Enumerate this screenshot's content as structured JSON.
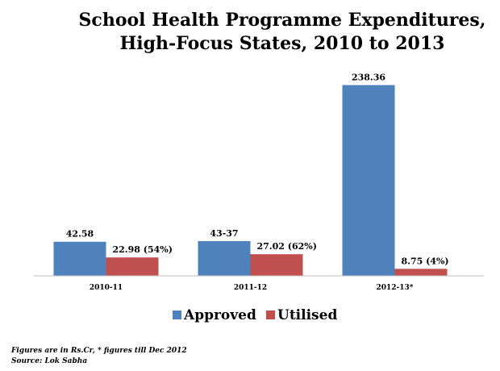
{
  "chart_data": {
    "type": "bar",
    "title_line1": "School Health Programme Expenditures,",
    "title_line2": "High-Focus States,  2010 to 2013",
    "categories": [
      "2010-11",
      "2011-12",
      "2012-13*"
    ],
    "series": [
      {
        "name": "Approved",
        "color": "#4f81bd",
        "values": [
          42.58,
          43.37,
          238.36
        ],
        "labels": [
          "42.58",
          "43-37",
          "238.36"
        ]
      },
      {
        "name": "Utilised",
        "color": "#c0504d",
        "values": [
          22.98,
          27.02,
          8.75
        ],
        "labels": [
          "22.98  (54%)",
          "27.02 (62%)",
          "8.75 (4%)"
        ]
      }
    ],
    "ylim": [
      0,
      260
    ],
    "grid": false,
    "legend": "bottom"
  },
  "footnote": {
    "line1": "Figures are in Rs.Cr, * figures till Dec 2012",
    "line2": "Source: Lok Sabha"
  }
}
